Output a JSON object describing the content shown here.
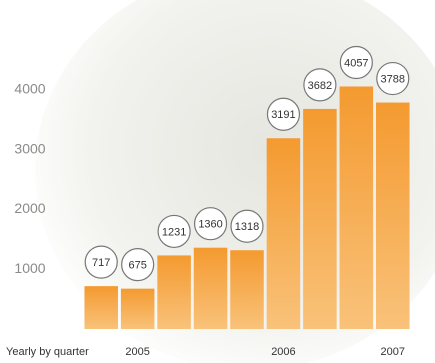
{
  "chart_data": {
    "type": "bar",
    "x_label": "Yearly by quarter",
    "categories": [
      null,
      "2005",
      null,
      null,
      null,
      "2006",
      null,
      null,
      "2007"
    ],
    "values": [
      717,
      675,
      1231,
      1360,
      1318,
      3191,
      3682,
      4057,
      3788
    ],
    "color": "#f6a23e",
    "ylim": [
      0,
      4500
    ],
    "yticks": [
      1000,
      2000,
      3000,
      4000
    ],
    "grid": false
  }
}
